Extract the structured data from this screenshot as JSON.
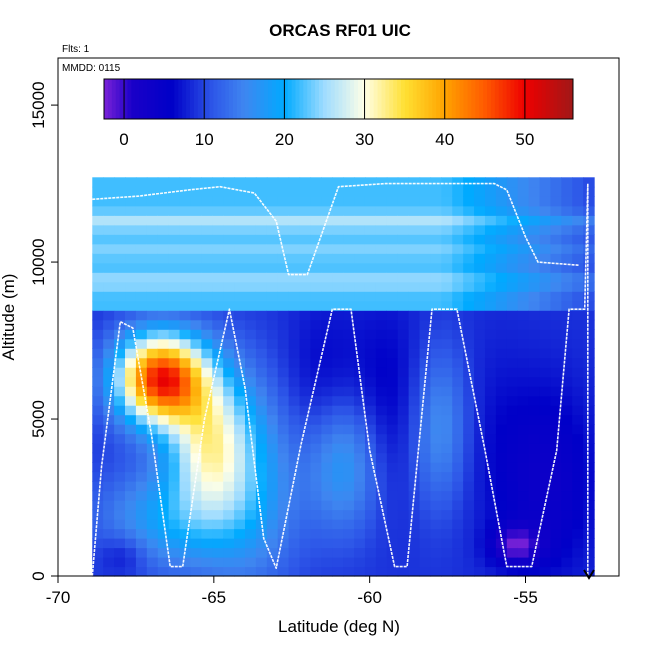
{
  "chart_data": {
    "type": "heatmap",
    "title": "ORCAS RF01 UIC",
    "annotations": [
      "Flts: 1",
      "MMDD: 0115"
    ],
    "xlabel": "Latitude (deg N)",
    "ylabel": "Altitude (m)",
    "xlim": [
      -70,
      -52
    ],
    "ylim": [
      0,
      16500
    ],
    "x_ticks": [
      -70,
      -65,
      -60,
      -55
    ],
    "x_tick_labels": [
      "-70",
      "-65",
      "-60",
      "-55"
    ],
    "y_ticks": [
      0,
      5000,
      10000,
      15000
    ],
    "y_tick_labels": [
      "0",
      "5000",
      "10000",
      "15000"
    ],
    "colorbar": {
      "range": [
        -2.5,
        56
      ],
      "ticks": [
        0,
        10,
        20,
        30,
        40,
        50
      ],
      "tick_labels": [
        "0",
        "10",
        "20",
        "30",
        "40",
        "50"
      ],
      "stops": [
        {
          "v": -2.5,
          "c": "#7b22d8"
        },
        {
          "v": 1,
          "c": "#1a00c8"
        },
        {
          "v": 6,
          "c": "#0000c8"
        },
        {
          "v": 11,
          "c": "#2d56e8"
        },
        {
          "v": 15,
          "c": "#3f86f0"
        },
        {
          "v": 20,
          "c": "#00aaff"
        },
        {
          "v": 25,
          "c": "#9fdcff"
        },
        {
          "v": 30,
          "c": "#ffffe6"
        },
        {
          "v": 35,
          "c": "#ffe033"
        },
        {
          "v": 40,
          "c": "#ffa300"
        },
        {
          "v": 45,
          "c": "#ff5a00"
        },
        {
          "v": 50,
          "c": "#ee0000"
        },
        {
          "v": 56,
          "c": "#a01818"
        }
      ]
    },
    "field": {
      "lat_range": [
        -68.9,
        -52.8
      ],
      "alt_range": [
        0,
        12700
      ],
      "background_value": 9,
      "boundary_alt": 8600,
      "upper_layer_value": 22,
      "upper_bands": [
        {
          "alt": 9400,
          "value": 25
        },
        {
          "alt": 10400,
          "value": 24
        },
        {
          "alt": 11300,
          "value": 26
        }
      ],
      "features": [
        {
          "lat": -66.7,
          "alt": 6300,
          "wlat": 1.4,
          "walt": 1400,
          "value": 48
        },
        {
          "lat": -65.2,
          "alt": 4300,
          "wlat": 1.3,
          "walt": 2200,
          "value": 27
        },
        {
          "lat": -63.9,
          "alt": 3000,
          "wlat": 1.6,
          "walt": 3200,
          "value": 18
        },
        {
          "lat": -66.5,
          "alt": 1800,
          "wlat": 2.2,
          "walt": 1600,
          "value": 18
        },
        {
          "lat": -67.9,
          "alt": 700,
          "wlat": 0.8,
          "walt": 700,
          "value": 5
        },
        {
          "lat": -61.6,
          "alt": 6200,
          "wlat": 1.2,
          "walt": 2500,
          "value": 6
        },
        {
          "lat": -59.3,
          "alt": 5500,
          "wlat": 1.5,
          "walt": 3200,
          "value": 5
        },
        {
          "lat": -60.8,
          "alt": 3600,
          "wlat": 1.2,
          "walt": 2200,
          "value": 18
        },
        {
          "lat": -57.8,
          "alt": 4800,
          "wlat": 1.0,
          "walt": 2600,
          "value": 17
        },
        {
          "lat": -56.1,
          "alt": 4300,
          "wlat": 1.3,
          "walt": 3600,
          "value": 7
        },
        {
          "lat": -54.2,
          "alt": 3000,
          "wlat": 1.5,
          "walt": 3200,
          "value": 4
        },
        {
          "lat": -55.3,
          "alt": 1000,
          "wlat": 0.8,
          "walt": 600,
          "value": 0
        }
      ]
    },
    "flight_track": {
      "color": "#ffffff",
      "lat": [
        -68.9,
        -68.6,
        -68.0,
        -67.6,
        -67.0,
        -66.4,
        -66.0,
        -65.3,
        -64.5,
        -64.0,
        -63.4,
        -63.0,
        -62.2,
        -61.2,
        -60.6,
        -60.0,
        -59.2,
        -58.8,
        -58.0,
        -57.2,
        -56.3,
        -55.6,
        -54.8,
        -54.0,
        -53.6,
        -53.1,
        -53.0,
        -53.0
      ],
      "alt": [
        0,
        3500,
        8100,
        7900,
        4500,
        300,
        300,
        5000,
        8500,
        6000,
        1200,
        250,
        4200,
        8500,
        8500,
        4000,
        300,
        300,
        8500,
        8500,
        4000,
        300,
        300,
        4000,
        8500,
        8500,
        12500,
        0
      ]
    },
    "upper_flight_track": {
      "color": "#ffffff",
      "lat": [
        -68.9,
        -67.4,
        -65.8,
        -64.8,
        -63.7,
        -63.0,
        -62.6,
        -62.0,
        -61.0,
        -59.5,
        -58.0,
        -56.8,
        -56.0,
        -55.6,
        -55.0,
        -54.6,
        -53.3
      ],
      "alt": [
        12000,
        12100,
        12300,
        12400,
        12200,
        11300,
        9600,
        9600,
        12400,
        12500,
        12500,
        12500,
        12500,
        12300,
        10800,
        10000,
        9900
      ]
    }
  }
}
